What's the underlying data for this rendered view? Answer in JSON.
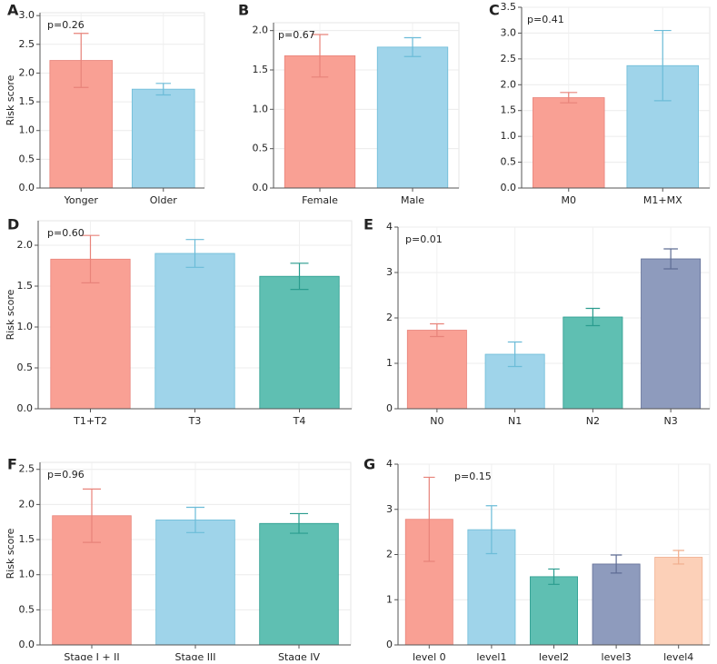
{
  "chart_data": [
    {
      "type": "bar",
      "panel": "A",
      "annotation": "p=0.26",
      "ylabel": "Risk score",
      "categories": [
        "Yonger",
        "Older"
      ],
      "values": [
        2.22,
        1.72
      ],
      "errors": [
        0.47,
        0.1
      ],
      "colors": [
        "#f9a094",
        "#9fd4ea"
      ],
      "error_colors": [
        "#e8837a",
        "#6cbcd8"
      ],
      "ylim": [
        0,
        3.05
      ],
      "yticks": [
        {
          "value": 0,
          "label": "0.0"
        },
        0.5,
        {
          "value": 1,
          "label": "1.0"
        },
        1.5,
        {
          "value": 2,
          "label": "2.0"
        },
        2.5,
        {
          "value": 3,
          "label": "3.0"
        }
      ],
      "grid": true
    },
    {
      "type": "bar",
      "panel": "B",
      "annotation": "p=0.67",
      "categories": [
        "Female",
        "Male"
      ],
      "values": [
        1.68,
        1.79
      ],
      "errors": [
        0.27,
        0.12
      ],
      "colors": [
        "#f9a094",
        "#9fd4ea"
      ],
      "error_colors": [
        "#e8837a",
        "#6cbcd8"
      ],
      "ylim": [
        0,
        2.1
      ],
      "yticks": [
        {
          "value": 0,
          "label": "0.0"
        },
        0.5,
        {
          "value": 1,
          "label": "1.0"
        },
        1.5,
        {
          "value": 2,
          "label": "2.0"
        }
      ],
      "grid": true
    },
    {
      "type": "bar",
      "panel": "C",
      "annotation": "p=0.41",
      "categories": [
        "M0",
        "M1+MX"
      ],
      "values": [
        1.75,
        2.37
      ],
      "errors": [
        0.1,
        0.68
      ],
      "colors": [
        "#f9a094",
        "#9fd4ea"
      ],
      "error_colors": [
        "#e8837a",
        "#6cbcd8"
      ],
      "ylim": [
        0,
        3.5
      ],
      "yticks": [
        {
          "value": 0,
          "label": "0.0"
        },
        0.5,
        {
          "value": 1,
          "label": "1.0"
        },
        1.5,
        {
          "value": 2,
          "label": "2.0"
        },
        2.5,
        {
          "value": 3,
          "label": "3.0"
        },
        3.5
      ],
      "grid": true
    },
    {
      "type": "bar",
      "panel": "D",
      "annotation": "p=0.60",
      "ylabel": "Risk score",
      "categories": [
        "T1+T2",
        "T3",
        "T4"
      ],
      "values": [
        1.83,
        1.9,
        1.62
      ],
      "errors": [
        0.29,
        0.17,
        0.16
      ],
      "colors": [
        "#f9a094",
        "#9fd4ea",
        "#5fbfb2"
      ],
      "error_colors": [
        "#e8837a",
        "#6cbcd8",
        "#2a9c8e"
      ],
      "ylim": [
        0,
        2.3
      ],
      "yticks": [
        {
          "value": 0,
          "label": "0.0"
        },
        0.5,
        {
          "value": 1,
          "label": "1.0"
        },
        1.5,
        {
          "value": 2,
          "label": "2.0"
        }
      ],
      "grid": true
    },
    {
      "type": "bar",
      "panel": "E",
      "annotation": "p=0.01",
      "categories": [
        "N0",
        "N1",
        "N2",
        "N3"
      ],
      "values": [
        1.73,
        1.2,
        2.02,
        3.3
      ],
      "errors": [
        0.14,
        0.27,
        0.19,
        0.22
      ],
      "colors": [
        "#f9a094",
        "#9fd4ea",
        "#5fbfb2",
        "#8e9bbd"
      ],
      "error_colors": [
        "#e8837a",
        "#6cbcd8",
        "#2a9c8e",
        "#5f6d95"
      ],
      "ylim": [
        0,
        4
      ],
      "yticks": [
        0,
        1,
        2,
        3,
        4
      ],
      "grid": true
    },
    {
      "type": "bar",
      "panel": "F",
      "annotation": "p=0.96",
      "ylabel": "Risk score",
      "categories": [
        "Stage I + II",
        "Stage III",
        "Stage IV"
      ],
      "values": [
        1.84,
        1.78,
        1.73
      ],
      "errors": [
        0.38,
        0.18,
        0.14
      ],
      "colors": [
        "#f9a094",
        "#9fd4ea",
        "#5fbfb2"
      ],
      "error_colors": [
        "#e8837a",
        "#6cbcd8",
        "#2a9c8e"
      ],
      "ylim": [
        0,
        2.6
      ],
      "yticks": [
        {
          "value": 0,
          "label": "0.0"
        },
        0.5,
        {
          "value": 1,
          "label": "1.0"
        },
        1.5,
        {
          "value": 2,
          "label": "2.0"
        },
        2.5
      ],
      "grid": true
    },
    {
      "type": "bar",
      "panel": "G",
      "annotation": "p=0.15",
      "categories": [
        "level 0",
        "level1",
        "level2",
        "level3",
        "level4"
      ],
      "values": [
        2.78,
        2.55,
        1.51,
        1.79,
        1.94
      ],
      "errors": [
        0.93,
        0.53,
        0.17,
        0.2,
        0.15
      ],
      "colors": [
        "#f9a094",
        "#9fd4ea",
        "#5fbfb2",
        "#8e9bbd",
        "#fcd0b8"
      ],
      "error_colors": [
        "#e8837a",
        "#6cbcd8",
        "#2a9c8e",
        "#5f6d95",
        "#f0ad8c"
      ],
      "ylim": [
        0,
        4
      ],
      "yticks": [
        0,
        1,
        2,
        3,
        4
      ],
      "grid": true
    }
  ]
}
